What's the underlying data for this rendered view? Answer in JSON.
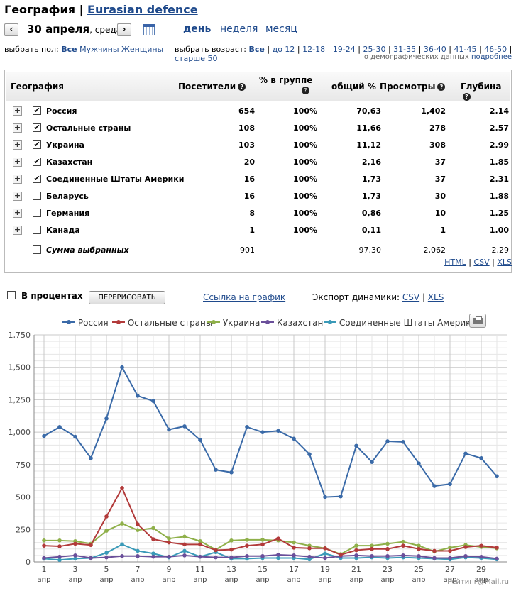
{
  "header": {
    "title": "География",
    "separator": "|",
    "site": "Eurasian defence"
  },
  "date": {
    "prev": "‹",
    "next": "›",
    "day": "30 апреля",
    "weekday": ", среда"
  },
  "periods": [
    "день",
    "неделя",
    "месяц"
  ],
  "gender": {
    "label": "выбрать пол:",
    "options": [
      "Все",
      "Мужчины",
      "Женщины"
    ]
  },
  "age": {
    "label": "выбрать возраст:",
    "options": [
      "Все",
      "до 12",
      "12-18",
      "19-24",
      "25-30",
      "31-35",
      "36-40",
      "41-45",
      "46-50",
      "старше 50"
    ]
  },
  "demo_note": {
    "text": "о демографических данных",
    "link": "подробнее"
  },
  "table": {
    "headers": {
      "geo": "География",
      "visitors": "Посетители",
      "pct_group": "% в группе",
      "pct_total": "общий %",
      "views": "Просмотры",
      "depth": "Глубина"
    },
    "rows": [
      {
        "name": "Россия",
        "checked": true,
        "visitors": "654",
        "pct_group": "100%",
        "pct_total": "70,63",
        "views": "1,402",
        "depth": "2.14"
      },
      {
        "name": "Остальные страны",
        "checked": true,
        "visitors": "108",
        "pct_group": "100%",
        "pct_total": "11,66",
        "views": "278",
        "depth": "2.57"
      },
      {
        "name": "Украина",
        "checked": true,
        "visitors": "103",
        "pct_group": "100%",
        "pct_total": "11,12",
        "views": "308",
        "depth": "2.99"
      },
      {
        "name": "Казахстан",
        "checked": true,
        "visitors": "20",
        "pct_group": "100%",
        "pct_total": "2,16",
        "views": "37",
        "depth": "1.85"
      },
      {
        "name": "Соединенные Штаты Америки",
        "checked": true,
        "visitors": "16",
        "pct_group": "100%",
        "pct_total": "1,73",
        "views": "37",
        "depth": "2.31"
      },
      {
        "name": "Беларусь",
        "checked": false,
        "visitors": "16",
        "pct_group": "100%",
        "pct_total": "1,73",
        "views": "30",
        "depth": "1.88"
      },
      {
        "name": "Германия",
        "checked": false,
        "visitors": "8",
        "pct_group": "100%",
        "pct_total": "0,86",
        "views": "10",
        "depth": "1.25"
      },
      {
        "name": "Канада",
        "checked": false,
        "visitors": "1",
        "pct_group": "100%",
        "pct_total": "0,11",
        "views": "1",
        "depth": "1.00"
      }
    ],
    "sum": {
      "name": "Сумма выбранных",
      "visitors": "901",
      "pct_total": "97.30",
      "views": "2,062",
      "depth": "2.29"
    }
  },
  "exports": [
    "HTML",
    "CSV",
    "XLS"
  ],
  "controls": {
    "percent_label": "В процентах",
    "redraw": "ПЕРЕРИСОВАТЬ",
    "graph_link": "Ссылка на график",
    "export_label": "Экспорт динамики:",
    "export_csv": "CSV",
    "export_xls": "XLS"
  },
  "colors": {
    "Россия": "#3a6aa8",
    "Остальные страны": "#b23a3a",
    "Украина": "#8fb04a",
    "Казахстан": "#6a4f9a",
    "США": "#3a9ab8"
  },
  "chart_data": {
    "type": "line",
    "x": [
      1,
      2,
      3,
      4,
      5,
      6,
      7,
      8,
      9,
      10,
      11,
      12,
      13,
      14,
      15,
      16,
      17,
      18,
      19,
      20,
      21,
      22,
      23,
      24,
      25,
      26,
      27,
      28,
      29,
      30
    ],
    "xtick_labels": [
      "1",
      "3",
      "5",
      "7",
      "9",
      "11",
      "13",
      "15",
      "17",
      "19",
      "21",
      "23",
      "25",
      "27",
      "29"
    ],
    "xtick_sub": "апр",
    "yticks": [
      "0",
      "250",
      "500",
      "750",
      "1,000",
      "1,250",
      "1,500",
      "1,750"
    ],
    "ylim": [
      0,
      1750
    ],
    "series": [
      {
        "name": "Россия",
        "color": "#3a6aa8",
        "values": [
          970,
          1040,
          965,
          800,
          1105,
          1500,
          1280,
          1240,
          1020,
          1045,
          940,
          710,
          690,
          1040,
          1000,
          1010,
          950,
          830,
          500,
          505,
          895,
          770,
          930,
          925,
          760,
          585,
          600,
          835,
          800,
          660
        ]
      },
      {
        "name": "Остальные страны",
        "color": "#b23a3a",
        "values": [
          125,
          120,
          140,
          130,
          350,
          570,
          290,
          175,
          150,
          135,
          135,
          90,
          95,
          125,
          135,
          180,
          110,
          105,
          105,
          55,
          90,
          100,
          100,
          125,
          100,
          85,
          85,
          115,
          125,
          110
        ]
      },
      {
        "name": "Украина",
        "color": "#8fb04a",
        "values": [
          165,
          165,
          160,
          140,
          240,
          295,
          245,
          260,
          180,
          195,
          160,
          95,
          165,
          170,
          170,
          165,
          150,
          125,
          105,
          60,
          125,
          125,
          140,
          155,
          125,
          80,
          110,
          130,
          115,
          105
        ]
      },
      {
        "name": "Казахстан",
        "color": "#6a4f9a",
        "values": [
          30,
          40,
          50,
          30,
          35,
          45,
          45,
          40,
          40,
          50,
          40,
          35,
          35,
          45,
          45,
          55,
          50,
          40,
          30,
          45,
          50,
          45,
          45,
          50,
          45,
          30,
          30,
          45,
          40,
          25
        ]
      },
      {
        "name": "Соединенные Штаты Америки",
        "color": "#3a9ab8",
        "values": [
          25,
          15,
          25,
          30,
          70,
          135,
          85,
          65,
          35,
          85,
          40,
          75,
          25,
          25,
          30,
          30,
          30,
          20,
          65,
          30,
          30,
          35,
          30,
          35,
          30,
          25,
          20,
          35,
          30,
          20
        ]
      }
    ]
  },
  "footer": "Рейтинг@Mail.ru"
}
